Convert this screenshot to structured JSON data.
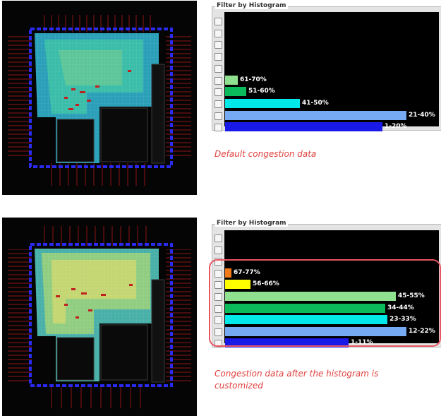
{
  "panels": [
    {
      "legend": "Filter by Histogram",
      "caption": "Default congestion data",
      "buckets": [
        {
          "label": "",
          "percent": 0,
          "color": ""
        },
        {
          "label": "",
          "percent": 0,
          "color": ""
        },
        {
          "label": "",
          "percent": 0,
          "color": ""
        },
        {
          "label": "",
          "percent": 0,
          "color": ""
        },
        {
          "label": "",
          "percent": 0,
          "color": ""
        },
        {
          "label": "61-70%",
          "percent": 6,
          "color": "#8fe08f"
        },
        {
          "label": "51-60%",
          "percent": 10,
          "color": "#0bbb5b"
        },
        {
          "label": "41-50%",
          "percent": 35,
          "color": "#00e8e8"
        },
        {
          "label": "21-40%",
          "percent": 85,
          "color": "#76aaf2"
        },
        {
          "label": "1-20%",
          "percent": 74,
          "color": "#1a1ae8"
        }
      ]
    },
    {
      "legend": "Filter by Histogram",
      "caption": "Congestion data after the histogram is customized",
      "buckets": [
        {
          "label": "",
          "percent": 0,
          "color": ""
        },
        {
          "label": "",
          "percent": 0,
          "color": ""
        },
        {
          "label": "",
          "percent": 0,
          "color": ""
        },
        {
          "label": "67-77%",
          "percent": 3,
          "color": "#f07a18"
        },
        {
          "label": "56-66%",
          "percent": 12,
          "color": "#ffff00"
        },
        {
          "label": "45-55%",
          "percent": 80,
          "color": "#8fe08f"
        },
        {
          "label": "34-44%",
          "percent": 75,
          "color": "#0bbb5b"
        },
        {
          "label": "23-33%",
          "percent": 76,
          "color": "#00e8e8"
        },
        {
          "label": "12-22%",
          "percent": 85,
          "color": "#76aaf2"
        },
        {
          "label": "1-11%",
          "percent": 58,
          "color": "#1a1ae8"
        }
      ]
    }
  ],
  "layout_images": [
    {
      "name": "Default congestion map",
      "heat_palette": [
        "#2a9fb8",
        "#3fc4a5",
        "#7fd08a"
      ]
    },
    {
      "name": "Customized congestion map",
      "heat_palette": [
        "#48b0a8",
        "#9fd27a",
        "#d6d86e"
      ]
    }
  ],
  "colors": {
    "caption": "#e0403e",
    "highlight_border": "#e85661",
    "chart_background": "#000000"
  }
}
